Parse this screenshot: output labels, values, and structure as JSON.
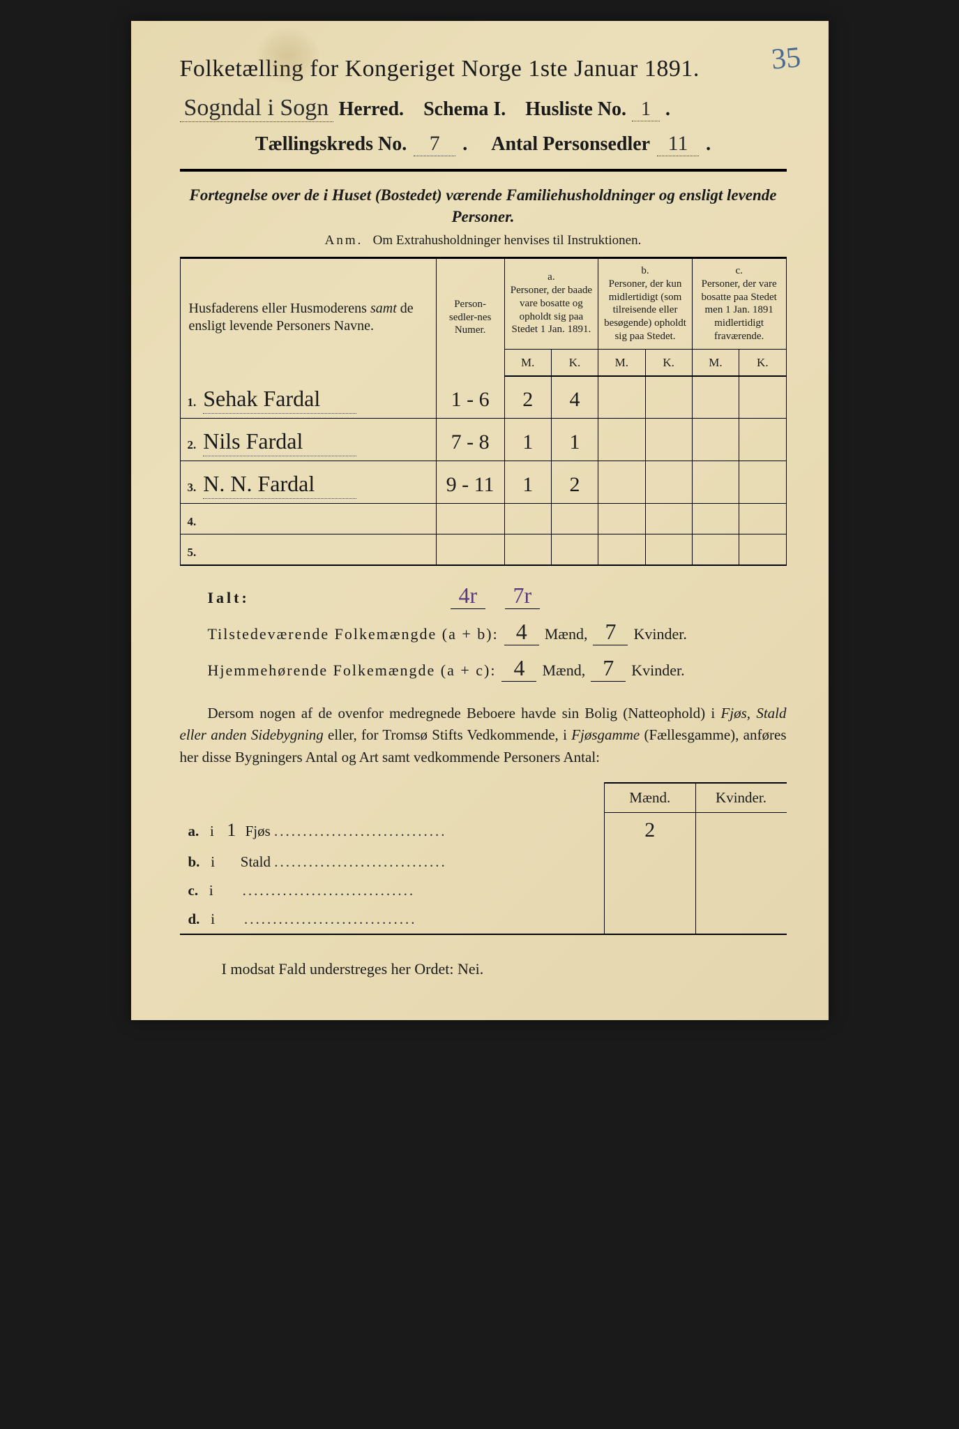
{
  "corner_number": "35",
  "title": "Folketælling for Kongeriget Norge 1ste Januar 1891.",
  "header": {
    "herred_value": "Sogndal i Sogn",
    "herred_label": "Herred.",
    "schema": "Schema I.",
    "husliste_label": "Husliste No.",
    "husliste_value": "1",
    "kreds_label": "Tællingskreds No.",
    "kreds_value": "7",
    "antal_label": "Antal Personsedler",
    "antal_value": "11"
  },
  "subtitle": "Fortegnelse over de i Huset (Bostedet) værende Familiehusholdninger og ensligt levende Personer.",
  "anm_label": "Anm.",
  "anm_text": "Om Extrahusholdninger henvises til Instruktionen.",
  "table": {
    "col_name": "Husfaderens eller Husmoderens samt de ensligt levende Personers Navne.",
    "col_numer": "Person-sedler-nes Numer.",
    "col_a_label": "a.",
    "col_a": "Personer, der baade vare bosatte og opholdt sig paa Stedet 1 Jan. 1891.",
    "col_b_label": "b.",
    "col_b": "Personer, der kun midlertidigt (som tilreisende eller besøgende) opholdt sig paa Stedet.",
    "col_c_label": "c.",
    "col_c": "Personer, der vare bosatte paa Stedet men 1 Jan. 1891 midlertidigt fraværende.",
    "mk_m": "M.",
    "mk_k": "K.",
    "rows": [
      {
        "n": "1.",
        "name": "Sehak Fardal",
        "numer": "1 - 6",
        "am": "2",
        "ak": "4",
        "bm": "",
        "bk": "",
        "cm": "",
        "ck": ""
      },
      {
        "n": "2.",
        "name": "Nils Fardal",
        "numer": "7 - 8",
        "am": "1",
        "ak": "1",
        "bm": "",
        "bk": "",
        "cm": "",
        "ck": ""
      },
      {
        "n": "3.",
        "name": "N. N. Fardal",
        "numer": "9 - 11",
        "am": "1",
        "ak": "2",
        "bm": "",
        "bk": "",
        "cm": "",
        "ck": ""
      },
      {
        "n": "4.",
        "name": "",
        "numer": "",
        "am": "",
        "ak": "",
        "bm": "",
        "bk": "",
        "cm": "",
        "ck": ""
      },
      {
        "n": "5.",
        "name": "",
        "numer": "",
        "am": "",
        "ak": "",
        "bm": "",
        "bk": "",
        "cm": "",
        "ck": ""
      }
    ]
  },
  "ialt": {
    "label": "Ialt:",
    "am": "4r",
    "ak": "7r",
    "line1_label": "Tilstedeværende Folkemængde (a + b):",
    "line1_m": "4",
    "line1_k": "7",
    "line2_label": "Hjemmehørende Folkemængde (a + c):",
    "line2_m": "4",
    "line2_k": "7",
    "maend": "Mænd,",
    "kvinder": "Kvinder."
  },
  "para": "Dersom nogen af de ovenfor medregnede Beboere havde sin Bolig (Natteophold) i Fjøs, Stald eller anden Sidebygning eller, for Tromsø Stifts Vedkommende, i Fjøsgamme (Fællesgamme), anføres her disse Bygningers Antal og Art samt vedkommende Personers Antal:",
  "lower": {
    "hdr_m": "Mænd.",
    "hdr_k": "Kvinder.",
    "rows": [
      {
        "lbl": "a.",
        "i": "i",
        "count": "1",
        "type": "Fjøs",
        "m": "2",
        "k": ""
      },
      {
        "lbl": "b.",
        "i": "i",
        "count": "",
        "type": "Stald",
        "m": "",
        "k": ""
      },
      {
        "lbl": "c.",
        "i": "i",
        "count": "",
        "type": "",
        "m": "",
        "k": ""
      },
      {
        "lbl": "d.",
        "i": "i",
        "count": "",
        "type": "",
        "m": "",
        "k": ""
      }
    ]
  },
  "footer": "I modsat Fald understreges her Ordet: Nei."
}
